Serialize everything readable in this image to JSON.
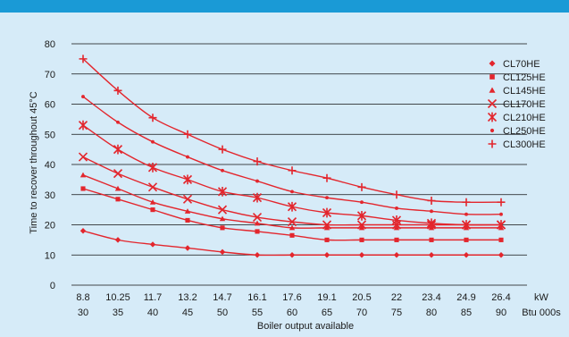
{
  "colors": {
    "background": "#d6ebf8",
    "top_band": "#1a9ad6",
    "series": "#e3262d",
    "grid": "#111111",
    "text": "#1a1a1a"
  },
  "chart_data": {
    "type": "line",
    "title": "",
    "xlabel": "Boiler output available",
    "ylabel": "Time to recover throughout 45°C",
    "x_unit_top": "kW",
    "x_unit_bottom": "Btu 000s",
    "categories_kw": [
      "8.8",
      "10.25",
      "11.7",
      "13.2",
      "14.7",
      "16.1",
      "17.6",
      "19.1",
      "20.5",
      "22",
      "23.4",
      "24.9",
      "26.4"
    ],
    "categories_btu": [
      "30",
      "35",
      "40",
      "45",
      "50",
      "55",
      "60",
      "65",
      "70",
      "75",
      "80",
      "85",
      "90"
    ],
    "ylim": [
      0,
      80
    ],
    "yticks": [
      0,
      10,
      20,
      30,
      40,
      50,
      60,
      70,
      80
    ],
    "grid": true,
    "legend_position": "right",
    "series": [
      {
        "name": "CL70HE",
        "marker": "diamond",
        "values": [
          18,
          15,
          13.5,
          12.3,
          11,
          10,
          10,
          10,
          10,
          10,
          10,
          10,
          10
        ]
      },
      {
        "name": "CL125HE",
        "marker": "square",
        "values": [
          32,
          28.5,
          25,
          21.5,
          19,
          17.8,
          16.5,
          15,
          15,
          15,
          15,
          15,
          15
        ]
      },
      {
        "name": "CL145HE",
        "marker": "triangle",
        "values": [
          36.5,
          32,
          27.5,
          24.5,
          22,
          20.5,
          19,
          19,
          19,
          19,
          19,
          19,
          19
        ]
      },
      {
        "name": "CL170HE",
        "marker": "x",
        "values": [
          42.5,
          37,
          32.5,
          28.5,
          25,
          22.5,
          21,
          20,
          20,
          20,
          20,
          20,
          20
        ]
      },
      {
        "name": "CL210HE",
        "marker": "star",
        "values": [
          53,
          45,
          39,
          35,
          31,
          29,
          26,
          24,
          23,
          21.5,
          20.5,
          20,
          20
        ]
      },
      {
        "name": "CL250HE",
        "marker": "dot",
        "values": [
          62.5,
          54,
          47.5,
          42.5,
          38,
          34.5,
          31,
          29,
          27.5,
          25.5,
          24.5,
          23.5,
          23.5
        ]
      },
      {
        "name": "CL300HE",
        "marker": "plus",
        "values": [
          75,
          64.5,
          55.5,
          50,
          45,
          41,
          38,
          35.5,
          32.5,
          30,
          28,
          27.5,
          27.5
        ]
      }
    ]
  }
}
